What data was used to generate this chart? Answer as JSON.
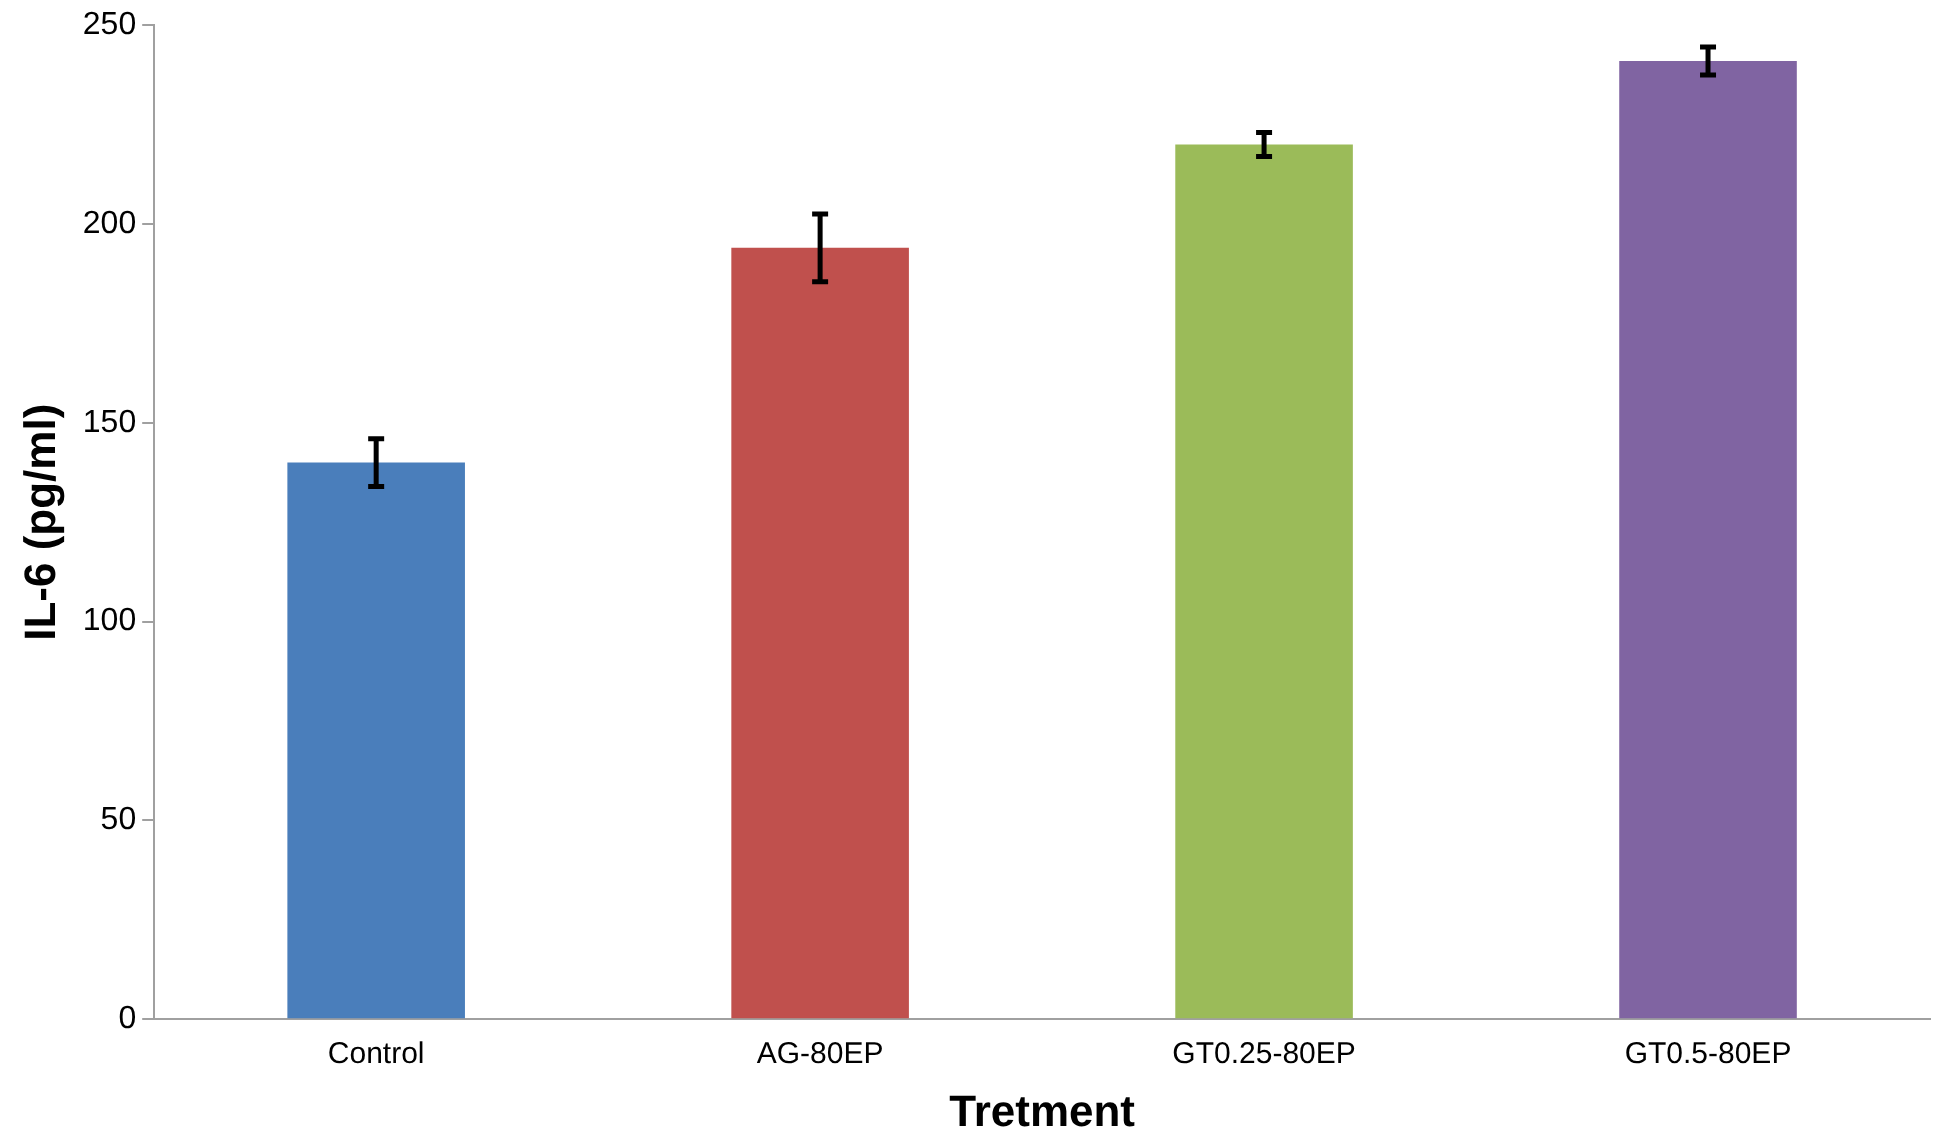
{
  "chart_data": {
    "type": "bar",
    "xlabel": "Tretment",
    "ylabel": "IL-6 (pg/ml)",
    "categories": [
      "Control",
      "AG-80EP",
      "GT0.25-80EP",
      "GT0.5-80EP"
    ],
    "values": [
      140,
      194,
      220,
      241
    ],
    "errors": [
      6,
      8.5,
      3,
      3.5
    ],
    "colors": [
      "#4a7ebb",
      "#c0504d",
      "#9bbb59",
      "#8064a2"
    ],
    "ylim": [
      0,
      250
    ],
    "yticks": [
      0,
      50,
      100,
      150,
      200,
      250
    ],
    "grid": false,
    "legend": false
  }
}
